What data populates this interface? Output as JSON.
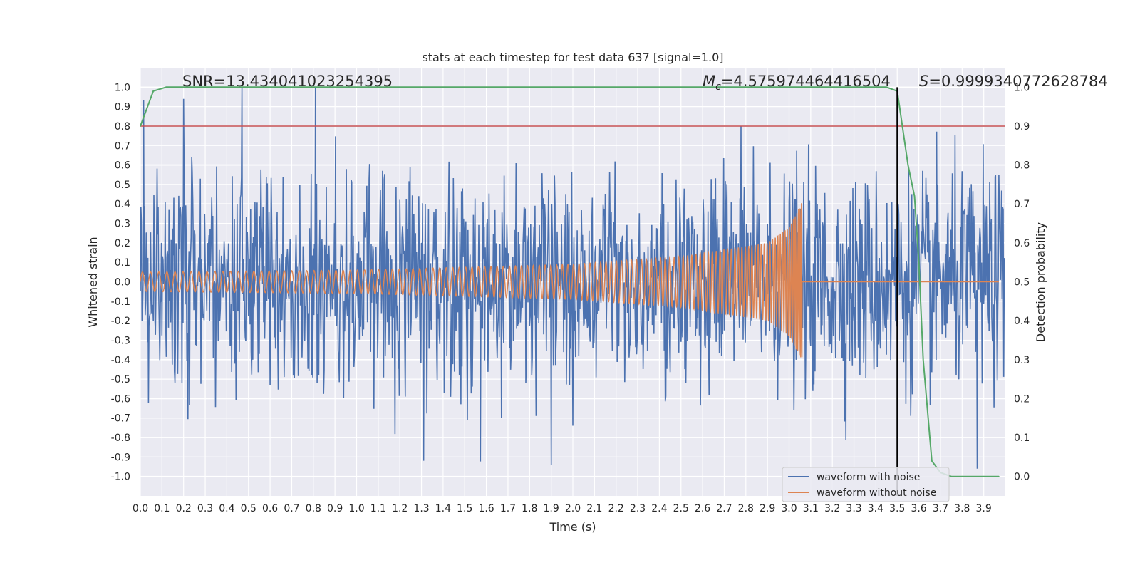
{
  "chart_data": {
    "type": "line",
    "title": "stats at each timestep for test data 637 [signal=1.0]",
    "xlabel": "Time (s)",
    "ylabel": "Whitened strain",
    "y2label": "Detection probability",
    "xlim": [
      0.0,
      4.0
    ],
    "ylim": [
      -1.1,
      1.1
    ],
    "y2lim": [
      -0.05,
      1.05
    ],
    "x_ticks": [
      "0.0",
      "0.1",
      "0.2",
      "0.3",
      "0.4",
      "0.5",
      "0.6",
      "0.7",
      "0.8",
      "0.9",
      "1.0",
      "1.1",
      "1.2",
      "1.3",
      "1.4",
      "1.5",
      "1.6",
      "1.7",
      "1.8",
      "1.9",
      "2.0",
      "2.1",
      "2.2",
      "2.3",
      "2.4",
      "2.5",
      "2.6",
      "2.7",
      "2.8",
      "2.9",
      "3.0",
      "3.1",
      "3.2",
      "3.3",
      "3.4",
      "3.5",
      "3.6",
      "3.7",
      "3.8",
      "3.9"
    ],
    "y_ticks": [
      "1.0",
      "0.9",
      "0.8",
      "0.7",
      "0.6",
      "0.5",
      "0.4",
      "0.3",
      "0.2",
      "0.1",
      "0.0",
      "-0.1",
      "-0.2",
      "-0.3",
      "-0.4",
      "-0.5",
      "-0.6",
      "-0.7",
      "-0.8",
      "-0.9",
      "-1.0"
    ],
    "y2_ticks": [
      "1.0",
      "0.9",
      "0.8",
      "0.7",
      "0.6",
      "0.5",
      "0.4",
      "0.3",
      "0.2",
      "0.1",
      "0.0"
    ],
    "grid": true,
    "legend_position": "bottom-right",
    "series": [
      {
        "name": "waveform with noise",
        "color": "#4c72b0",
        "axis": "left",
        "description": "dense noisy strain signal spanning roughly -0.95 to 1.0",
        "peaks": [
          {
            "x": 0.2,
            "y": 0.94
          },
          {
            "x": 0.47,
            "y": 1.0
          },
          {
            "x": 0.81,
            "y": 1.0
          },
          {
            "x": 1.9,
            "y": -0.94
          },
          {
            "x": 3.87,
            "y": -0.96
          }
        ]
      },
      {
        "name": "waveform without noise",
        "color": "#dd8452",
        "axis": "left",
        "description": "chirp with amplitude rising from about 0.05 to 0.41, ending at t = 3.06 s",
        "amplitude_points": [
          {
            "x": 0.0,
            "y": 0.05
          },
          {
            "x": 1.0,
            "y": 0.06
          },
          {
            "x": 2.0,
            "y": 0.09
          },
          {
            "x": 2.5,
            "y": 0.13
          },
          {
            "x": 2.9,
            "y": 0.2
          },
          {
            "x": 3.0,
            "y": 0.28
          },
          {
            "x": 3.06,
            "y": 0.41
          }
        ]
      },
      {
        "name": "",
        "color": "#55a868",
        "axis": "right",
        "x": [
          0.0,
          0.06,
          0.12,
          0.25,
          0.5,
          1.0,
          1.5,
          2.0,
          2.5,
          3.0,
          3.3,
          3.45,
          3.5,
          3.55,
          3.58,
          3.6,
          3.62,
          3.66,
          3.7,
          3.75,
          3.8,
          3.9,
          3.97
        ],
        "values": [
          0.9,
          0.99,
          1.0,
          1.0,
          1.0,
          1.0,
          1.0,
          1.0,
          1.0,
          1.0,
          1.0,
          1.0,
          0.99,
          0.8,
          0.72,
          0.55,
          0.3,
          0.04,
          0.01,
          0.0,
          0.0,
          0.0,
          0.0
        ]
      }
    ],
    "threshold_line": {
      "y2": 0.9,
      "color": "#c44e52"
    },
    "marker_line": {
      "x": 3.5,
      "color": "#000000"
    },
    "annotations": {
      "snr": "SNR=13.434041023254395",
      "mc_symbol": "M",
      "mc_sub": "c",
      "mc_value": "=4.575974464416504",
      "s_symbol": "S",
      "s_value": "=0.9999340772628784"
    }
  }
}
